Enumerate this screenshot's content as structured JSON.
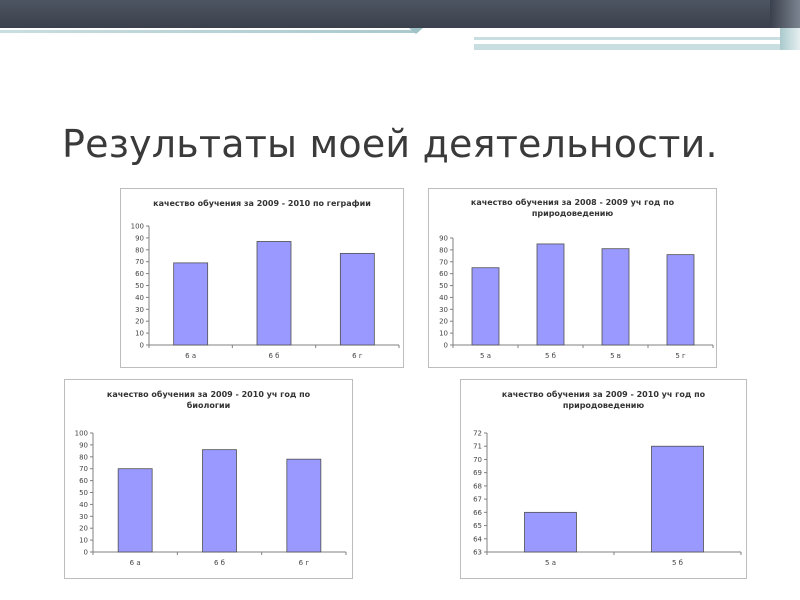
{
  "slide": {
    "title": "Результаты моей деятельности."
  },
  "chart_data": [
    {
      "type": "bar",
      "title": "качество обучения за 2009 - 2010 по геграфии",
      "categories": [
        "6 а",
        "6 б",
        "6 г"
      ],
      "values": [
        69,
        87,
        77
      ],
      "ylim": [
        0,
        100
      ],
      "yticks": [
        "0",
        "10",
        "20",
        "30",
        "40",
        "50",
        "60",
        "70",
        "80",
        "90",
        "100"
      ],
      "xlabel": "",
      "ylabel": "",
      "bar_color": "#9999ff",
      "grid": false,
      "legend": "none"
    },
    {
      "type": "bar",
      "title": "качество обучения за 2008 - 2009 уч год по\nприродоведению",
      "categories": [
        "5 а",
        "5 б",
        "5 в",
        "5 г"
      ],
      "values": [
        65,
        85,
        81,
        76
      ],
      "ylim": [
        0,
        90
      ],
      "yticks": [
        "0",
        "10",
        "20",
        "30",
        "40",
        "50",
        "60",
        "70",
        "80",
        "90"
      ],
      "xlabel": "",
      "ylabel": "",
      "bar_color": "#9999ff",
      "grid": false,
      "legend": "none"
    },
    {
      "type": "bar",
      "title": "качество обучения за 2009 - 2010 уч год по\nбиологии",
      "categories": [
        "6 а",
        "6 б",
        "6 г"
      ],
      "values": [
        70,
        86,
        78
      ],
      "ylim": [
        0,
        100
      ],
      "yticks": [
        "0",
        "10",
        "20",
        "30",
        "40",
        "50",
        "60",
        "70",
        "80",
        "90",
        "100"
      ],
      "xlabel": "",
      "ylabel": "",
      "bar_color": "#9999ff",
      "grid": false,
      "legend": "none"
    },
    {
      "type": "bar",
      "title": "качество обучения за 2009 - 2010 уч год по\nприродоведению",
      "categories": [
        "5 а",
        "5 б"
      ],
      "values": [
        66,
        71
      ],
      "ylim": [
        63,
        72
      ],
      "yticks": [
        "63",
        "64",
        "65",
        "66",
        "67",
        "68",
        "69",
        "70",
        "71",
        "72"
      ],
      "xlabel": "",
      "ylabel": "",
      "bar_color": "#9999ff",
      "grid": false,
      "legend": "none"
    }
  ]
}
